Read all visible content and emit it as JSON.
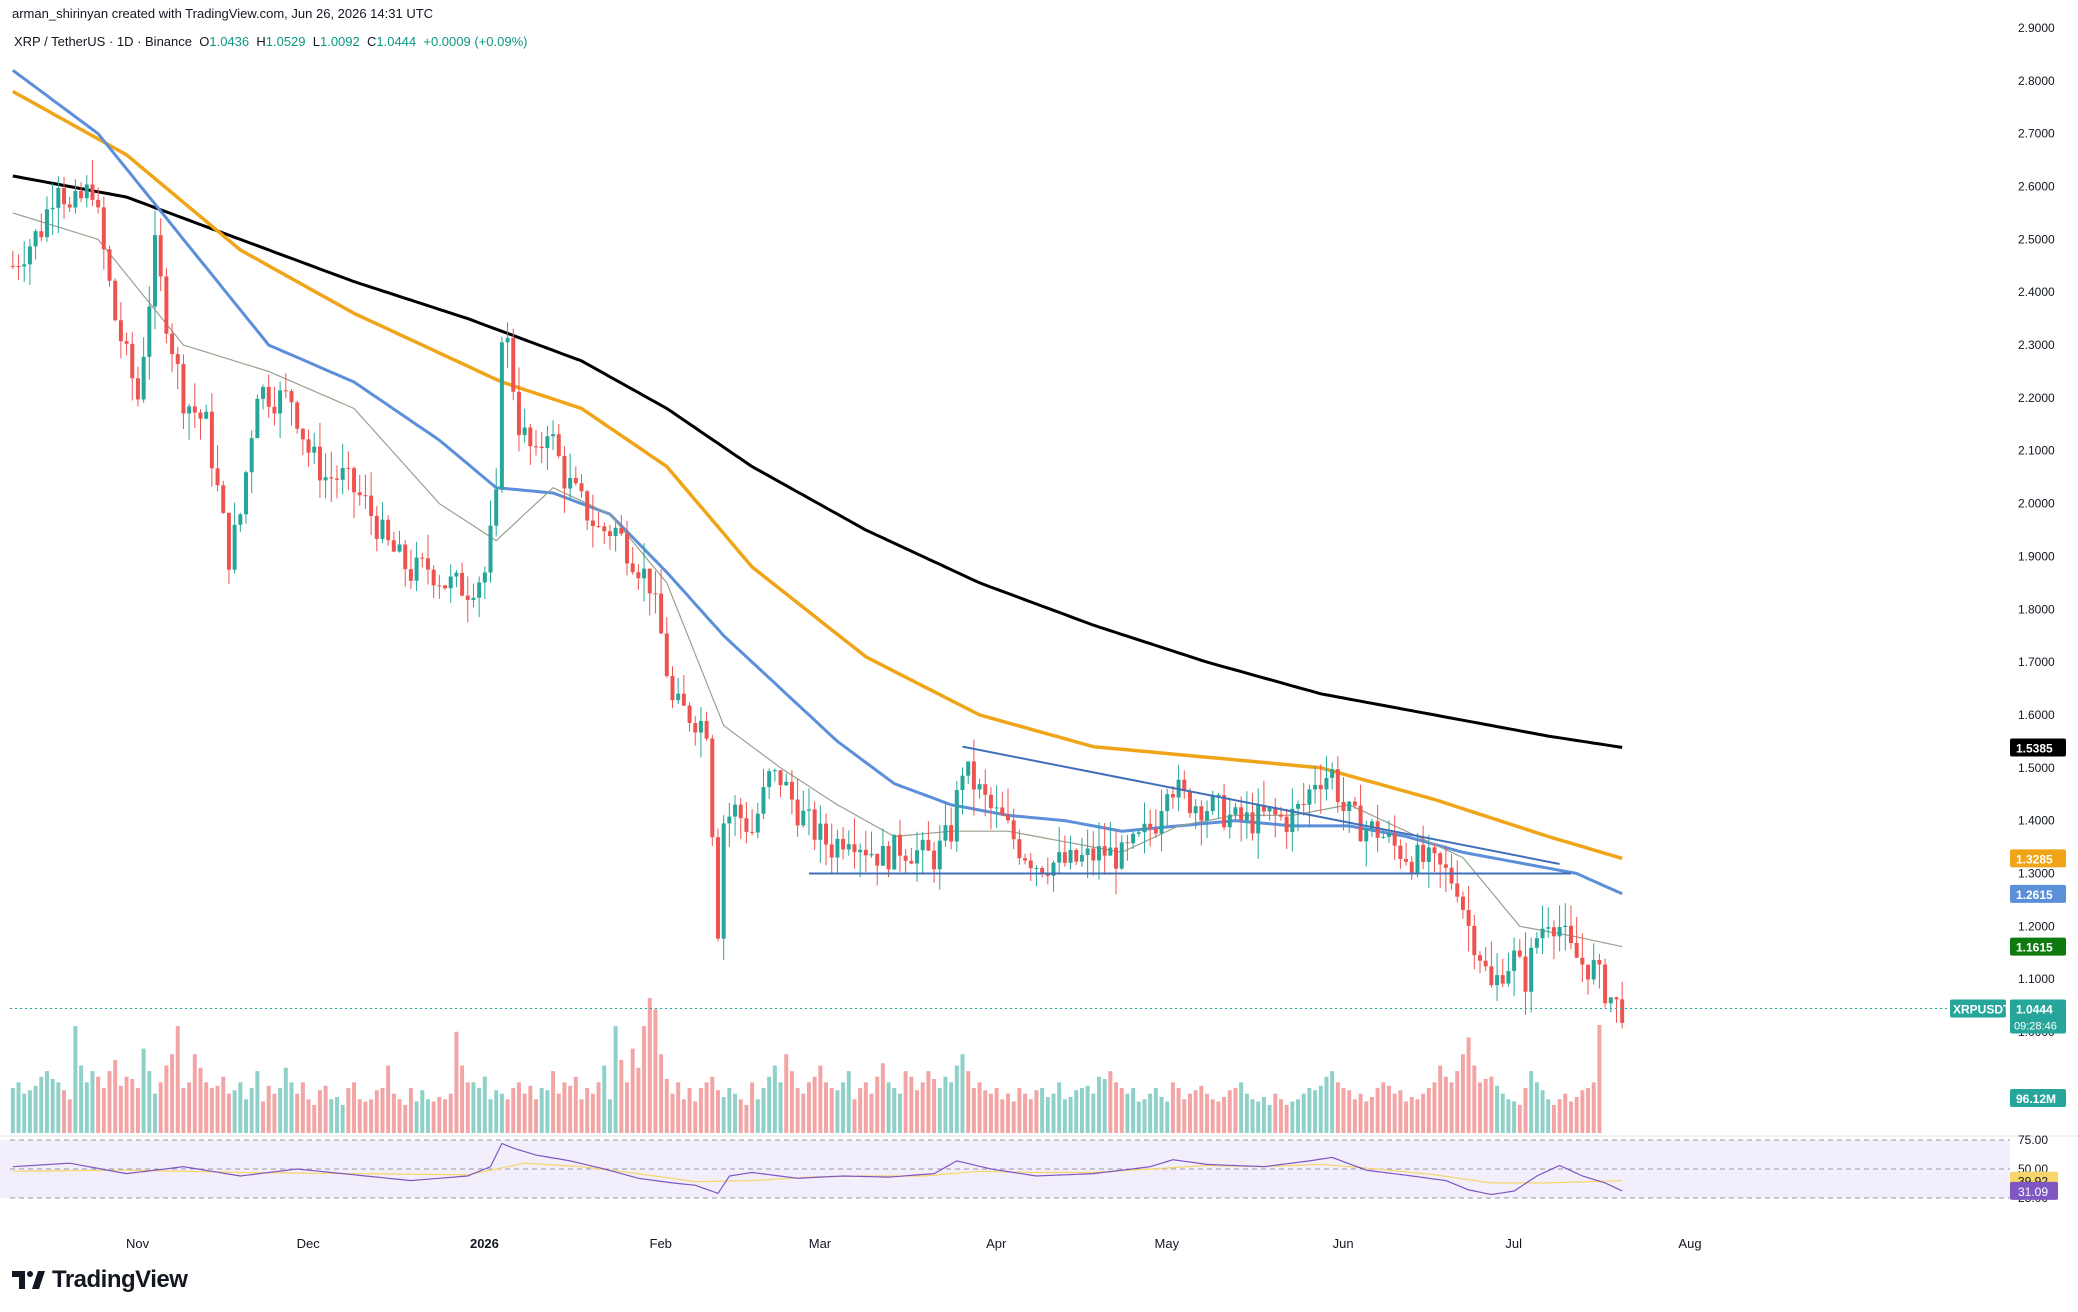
{
  "header": {
    "author_line": "arman_shirinyan created with TradingView.com, Jun 26, 2026 14:31 UTC"
  },
  "symbol_line": {
    "symbol": "XRP / TetherUS · 1D · Binance",
    "open_label": "O",
    "open": "1.0436",
    "high_label": "H",
    "high": "1.0529",
    "low_label": "L",
    "low": "1.0092",
    "close_label": "C",
    "close": "1.0444",
    "change": "+0.0009 (+0.09%)"
  },
  "brand": {
    "name": "TradingView"
  },
  "colors": {
    "up": "#26a69a",
    "down": "#ef5350",
    "ma_black": "#000000",
    "ma_orange": "#f0a519",
    "ma_blue": "#5b8fd9",
    "ma_thin": "#9aa08e",
    "trendline": "#3f6fb8",
    "rsi_line": "#7e57c2",
    "rsi_ma": "#f5d66b"
  },
  "chart_data": {
    "type": "candlestick",
    "symbol": "XRPUSDT",
    "interval": "1D",
    "y_axis": {
      "min": 0.96,
      "max": 2.9,
      "ticks": [
        "2.9000",
        "2.8000",
        "2.7000",
        "2.6000",
        "2.5000",
        "2.4000",
        "2.3000",
        "2.2000",
        "2.1000",
        "2.0000",
        "1.9000",
        "1.8000",
        "1.7000",
        "1.6000",
        "1.5000",
        "1.4000",
        "1.3000",
        "1.2000",
        "1.1000",
        "1.0000"
      ]
    },
    "x_axis": {
      "labels": [
        "Nov",
        "Dec",
        "2026",
        "Feb",
        "Mar",
        "Apr",
        "May",
        "Jun",
        "Jul",
        "Aug"
      ]
    },
    "price_path": [
      [
        0,
        2.45
      ],
      [
        5,
        2.52
      ],
      [
        8,
        2.62
      ],
      [
        10,
        2.55
      ],
      [
        14,
        2.6
      ],
      [
        18,
        2.35
      ],
      [
        22,
        2.2
      ],
      [
        25,
        2.48
      ],
      [
        27,
        2.35
      ],
      [
        30,
        2.2
      ],
      [
        34,
        2.15
      ],
      [
        38,
        1.9
      ],
      [
        40,
        1.98
      ],
      [
        43,
        2.22
      ],
      [
        46,
        2.2
      ],
      [
        49,
        2.2
      ],
      [
        52,
        2.1
      ],
      [
        55,
        2.05
      ],
      [
        58,
        2.05
      ],
      [
        62,
        2.0
      ],
      [
        66,
        1.92
      ],
      [
        70,
        1.87
      ],
      [
        73,
        1.88
      ],
      [
        76,
        1.85
      ],
      [
        80,
        1.84
      ],
      [
        83,
        1.87
      ],
      [
        85,
        2.0
      ],
      [
        86,
        2.33
      ],
      [
        87,
        2.3
      ],
      [
        89,
        2.15
      ],
      [
        92,
        2.08
      ],
      [
        94,
        2.15
      ],
      [
        97,
        2.05
      ],
      [
        100,
        2.0
      ],
      [
        103,
        1.95
      ],
      [
        106,
        1.95
      ],
      [
        109,
        1.9
      ],
      [
        112,
        1.85
      ],
      [
        114,
        1.75
      ],
      [
        116,
        1.62
      ],
      [
        119,
        1.6
      ],
      [
        122,
        1.58
      ],
      [
        124,
        1.2
      ],
      [
        125,
        1.4
      ],
      [
        127,
        1.42
      ],
      [
        130,
        1.38
      ],
      [
        133,
        1.48
      ],
      [
        135,
        1.48
      ],
      [
        138,
        1.42
      ],
      [
        141,
        1.38
      ],
      [
        144,
        1.35
      ],
      [
        147,
        1.38
      ],
      [
        150,
        1.35
      ],
      [
        153,
        1.33
      ],
      [
        156,
        1.35
      ],
      [
        159,
        1.34
      ],
      [
        162,
        1.33
      ],
      [
        165,
        1.38
      ],
      [
        167,
        1.5
      ],
      [
        169,
        1.47
      ],
      [
        172,
        1.42
      ],
      [
        174,
        1.4
      ],
      [
        177,
        1.35
      ],
      [
        180,
        1.32
      ],
      [
        183,
        1.32
      ],
      [
        186,
        1.32
      ],
      [
        189,
        1.33
      ],
      [
        192,
        1.34
      ],
      [
        195,
        1.33
      ],
      [
        198,
        1.36
      ],
      [
        201,
        1.4
      ],
      [
        203,
        1.48
      ],
      [
        206,
        1.44
      ],
      [
        209,
        1.43
      ],
      [
        212,
        1.42
      ],
      [
        215,
        1.4
      ],
      [
        218,
        1.4
      ],
      [
        221,
        1.41
      ],
      [
        224,
        1.4
      ],
      [
        227,
        1.43
      ],
      [
        229,
        1.48
      ],
      [
        232,
        1.49
      ],
      [
        234,
        1.42
      ],
      [
        237,
        1.39
      ],
      [
        240,
        1.38
      ],
      [
        243,
        1.35
      ],
      [
        246,
        1.33
      ],
      [
        249,
        1.32
      ],
      [
        252,
        1.3
      ],
      [
        254,
        1.28
      ],
      [
        256,
        1.2
      ],
      [
        258,
        1.15
      ],
      [
        260,
        1.08
      ],
      [
        262,
        1.12
      ],
      [
        264,
        1.14
      ],
      [
        266,
        1.1
      ],
      [
        268,
        1.18
      ],
      [
        270,
        1.22
      ],
      [
        272,
        1.2
      ],
      [
        274,
        1.15
      ],
      [
        276,
        1.13
      ],
      [
        278,
        1.12
      ],
      [
        280,
        1.08
      ],
      [
        282,
        1.05
      ],
      [
        283,
        1.0444
      ]
    ],
    "moving_averages": [
      {
        "name": "MA black",
        "color": "#000000",
        "points": [
          [
            0,
            2.62
          ],
          [
            20,
            2.58
          ],
          [
            40,
            2.5
          ],
          [
            60,
            2.42
          ],
          [
            80,
            2.35
          ],
          [
            100,
            2.27
          ],
          [
            115,
            2.18
          ],
          [
            130,
            2.07
          ],
          [
            150,
            1.95
          ],
          [
            170,
            1.85
          ],
          [
            190,
            1.77
          ],
          [
            210,
            1.7
          ],
          [
            230,
            1.64
          ],
          [
            250,
            1.6
          ],
          [
            270,
            1.56
          ],
          [
            283,
            1.5385
          ]
        ],
        "last": "1.5385"
      },
      {
        "name": "MA orange",
        "color": "#f0a519",
        "points": [
          [
            0,
            2.78
          ],
          [
            20,
            2.66
          ],
          [
            40,
            2.48
          ],
          [
            60,
            2.36
          ],
          [
            80,
            2.26
          ],
          [
            86,
            2.23
          ],
          [
            100,
            2.18
          ],
          [
            115,
            2.07
          ],
          [
            130,
            1.88
          ],
          [
            150,
            1.71
          ],
          [
            170,
            1.6
          ],
          [
            190,
            1.54
          ],
          [
            210,
            1.52
          ],
          [
            230,
            1.5
          ],
          [
            250,
            1.44
          ],
          [
            270,
            1.37
          ],
          [
            283,
            1.3285
          ]
        ],
        "last": "1.3285"
      },
      {
        "name": "MA blue",
        "color": "#5b8fd9",
        "points": [
          [
            0,
            2.82
          ],
          [
            15,
            2.7
          ],
          [
            30,
            2.5
          ],
          [
            45,
            2.3
          ],
          [
            60,
            2.23
          ],
          [
            75,
            2.12
          ],
          [
            85,
            2.03
          ],
          [
            95,
            2.02
          ],
          [
            105,
            1.98
          ],
          [
            115,
            1.87
          ],
          [
            125,
            1.75
          ],
          [
            135,
            1.65
          ],
          [
            145,
            1.55
          ],
          [
            155,
            1.47
          ],
          [
            165,
            1.43
          ],
          [
            175,
            1.41
          ],
          [
            185,
            1.4
          ],
          [
            195,
            1.38
          ],
          [
            205,
            1.39
          ],
          [
            215,
            1.4
          ],
          [
            225,
            1.39
          ],
          [
            235,
            1.39
          ],
          [
            245,
            1.37
          ],
          [
            255,
            1.34
          ],
          [
            265,
            1.32
          ],
          [
            275,
            1.3
          ],
          [
            283,
            1.2615
          ]
        ],
        "last": "1.2615"
      },
      {
        "name": "MA thin",
        "color": "#9aa08e",
        "points": [
          [
            0,
            2.55
          ],
          [
            15,
            2.5
          ],
          [
            30,
            2.3
          ],
          [
            45,
            2.25
          ],
          [
            60,
            2.18
          ],
          [
            75,
            2.0
          ],
          [
            85,
            1.93
          ],
          [
            95,
            2.03
          ],
          [
            105,
            1.98
          ],
          [
            115,
            1.85
          ],
          [
            125,
            1.58
          ],
          [
            135,
            1.5
          ],
          [
            145,
            1.43
          ],
          [
            155,
            1.37
          ],
          [
            165,
            1.38
          ],
          [
            175,
            1.38
          ],
          [
            185,
            1.36
          ],
          [
            195,
            1.34
          ],
          [
            205,
            1.39
          ],
          [
            215,
            1.41
          ],
          [
            225,
            1.41
          ],
          [
            235,
            1.43
          ],
          [
            245,
            1.38
          ],
          [
            255,
            1.33
          ],
          [
            265,
            1.2
          ],
          [
            275,
            1.18
          ],
          [
            283,
            1.1615
          ]
        ],
        "last": "1.1615"
      }
    ],
    "price_labels": [
      {
        "text": "1.5385",
        "bg": "#000000",
        "value": 1.5385
      },
      {
        "text": "1.3285",
        "bg": "#f0a519",
        "value": 1.3285
      },
      {
        "text": "1.2615",
        "bg": "#5b8fd9",
        "value": 1.2615
      },
      {
        "text": "1.1615",
        "bg": "#0f7a0f",
        "value": 1.1615
      }
    ],
    "last_price": {
      "symbol": "XRPUSDT",
      "value": "1.0444",
      "countdown": "09:28:46"
    },
    "trendlines": [
      {
        "name": "descending resistance",
        "from": [
          167,
          1.54
        ],
        "to": [
          272,
          1.318
        ]
      },
      {
        "name": "horizontal support",
        "from": [
          140,
          1.3
        ],
        "to": [
          274,
          1.3
        ]
      }
    ],
    "volume": {
      "label": "96.12M",
      "values_m": [
        40,
        45,
        35,
        38,
        42,
        50,
        55,
        48,
        45,
        38,
        30,
        95,
        60,
        45,
        55,
        50,
        40,
        55,
        65,
        42,
        50,
        48,
        40,
        75,
        55,
        35,
        45,
        60,
        70,
        95,
        40,
        45,
        70,
        58,
        45,
        40,
        42,
        50,
        35,
        38,
        45,
        30,
        40,
        55,
        28,
        42,
        35,
        40,
        58,
        45,
        35,
        45,
        30,
        25,
        38,
        42,
        30,
        32,
        25,
        40,
        45,
        30,
        28,
        30,
        38,
        40,
        60,
        35,
        30,
        25,
        40,
        28,
        38,
        30,
        28,
        32,
        30,
        35,
        90,
        60,
        45,
        45,
        40,
        50,
        30,
        38,
        35,
        30,
        40,
        45,
        35,
        42,
        30,
        40,
        38,
        55,
        35,
        45,
        42,
        50,
        30,
        40,
        35,
        45,
        60,
        30,
        95,
        65,
        45,
        75,
        58,
        95,
        120,
        110,
        70,
        48,
        35,
        45,
        30,
        40,
        28,
        40,
        45,
        50,
        38,
        32,
        40,
        35,
        30,
        25,
        45,
        30,
        40,
        50,
        60,
        45,
        70,
        55,
        40,
        35,
        45,
        50,
        60,
        45,
        40,
        38,
        45,
        55,
        30,
        40,
        45,
        35,
        50,
        62,
        45,
        40,
        35,
        55,
        50,
        38,
        45,
        55,
        48,
        40,
        50,
        45,
        60,
        70,
        55,
        40,
        45,
        38,
        35,
        40,
        30,
        35,
        28,
        40,
        35,
        30,
        38,
        40,
        32,
        35,
        45,
        30,
        32,
        38,
        40,
        42,
        35,
        50,
        48,
        55,
        45,
        40,
        35,
        40,
        28,
        30,
        35,
        40,
        32,
        28,
        45,
        40,
        30,
        35,
        38,
        42,
        35,
        30,
        28,
        32,
        38,
        40,
        45,
        35,
        30,
        28,
        32,
        25,
        35,
        30,
        25,
        28,
        30,
        35,
        40,
        38,
        42,
        50,
        55,
        45,
        40,
        38,
        30,
        35,
        28,
        32,
        40,
        45,
        42,
        35,
        38,
        28,
        32,
        30,
        35,
        40,
        45,
        60,
        50,
        45,
        55,
        70,
        85,
        60,
        45,
        48,
        50,
        42,
        35,
        30,
        28,
        25,
        40,
        55,
        45,
        38,
        30,
        25,
        30,
        35,
        28,
        32,
        38,
        40,
        45,
        96
      ]
    },
    "rsi": {
      "levels": [
        "75.00",
        "50.00",
        "25.00"
      ],
      "rsi_value": "31.09",
      "rsi_ma_value": "39.92",
      "rsi_path": [
        [
          0,
          52
        ],
        [
          10,
          55
        ],
        [
          20,
          46
        ],
        [
          30,
          52
        ],
        [
          40,
          44
        ],
        [
          50,
          50
        ],
        [
          60,
          45
        ],
        [
          70,
          40
        ],
        [
          80,
          44
        ],
        [
          84,
          52
        ],
        [
          86,
          72
        ],
        [
          88,
          68
        ],
        [
          92,
          62
        ],
        [
          98,
          57
        ],
        [
          104,
          50
        ],
        [
          110,
          42
        ],
        [
          116,
          38
        ],
        [
          120,
          36
        ],
        [
          124,
          29
        ],
        [
          126,
          44
        ],
        [
          130,
          47
        ],
        [
          138,
          42
        ],
        [
          146,
          44
        ],
        [
          154,
          43
        ],
        [
          162,
          46
        ],
        [
          166,
          57
        ],
        [
          172,
          50
        ],
        [
          180,
          44
        ],
        [
          190,
          46
        ],
        [
          200,
          52
        ],
        [
          204,
          58
        ],
        [
          210,
          54
        ],
        [
          220,
          52
        ],
        [
          228,
          57
        ],
        [
          232,
          60
        ],
        [
          238,
          49
        ],
        [
          246,
          44
        ],
        [
          252,
          40
        ],
        [
          256,
          32
        ],
        [
          260,
          28
        ],
        [
          264,
          31
        ],
        [
          268,
          44
        ],
        [
          272,
          53
        ],
        [
          276,
          44
        ],
        [
          280,
          38
        ],
        [
          283,
          31
        ]
      ],
      "rsi_ma_path": [
        [
          0,
          48
        ],
        [
          20,
          49
        ],
        [
          40,
          47
        ],
        [
          60,
          46
        ],
        [
          80,
          45
        ],
        [
          90,
          55
        ],
        [
          100,
          52
        ],
        [
          110,
          46
        ],
        [
          120,
          39
        ],
        [
          130,
          40
        ],
        [
          140,
          43
        ],
        [
          150,
          44
        ],
        [
          160,
          44
        ],
        [
          170,
          48
        ],
        [
          180,
          47
        ],
        [
          190,
          47
        ],
        [
          200,
          50
        ],
        [
          210,
          53
        ],
        [
          220,
          52
        ],
        [
          230,
          54
        ],
        [
          240,
          50
        ],
        [
          250,
          45
        ],
        [
          260,
          38
        ],
        [
          270,
          38
        ],
        [
          283,
          39.92
        ]
      ]
    }
  }
}
